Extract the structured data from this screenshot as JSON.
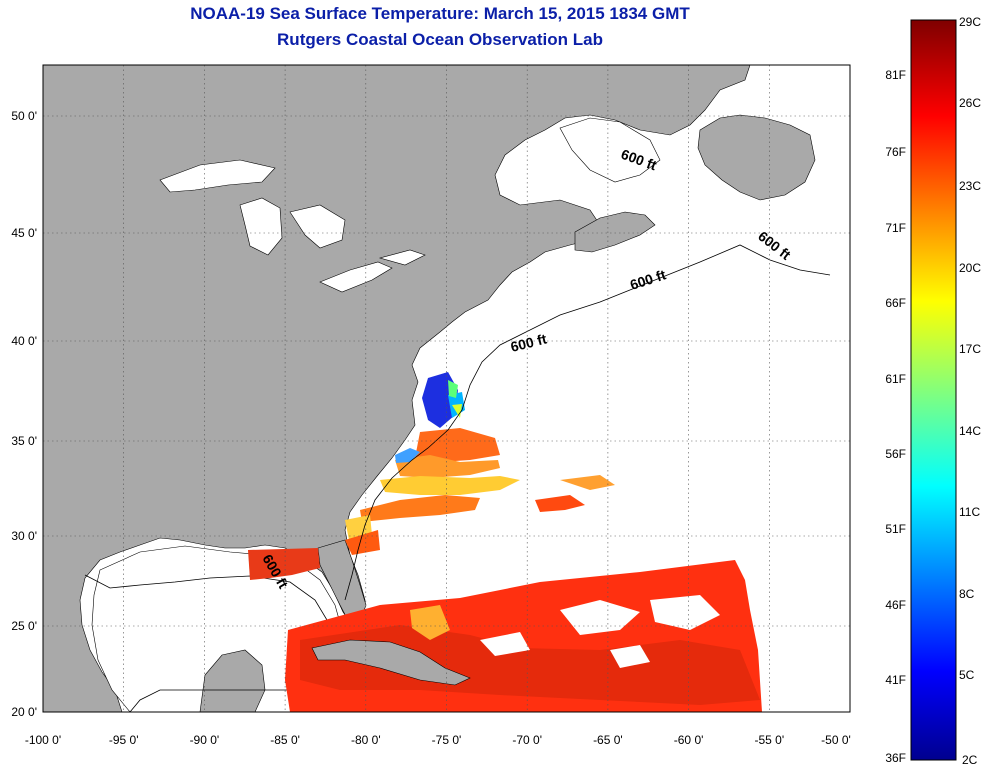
{
  "title": "NOAA-19 Sea Surface Temperature:  March 15, 2015 1834 GMT",
  "subtitle": "Rutgers Coastal Ocean Observation Lab",
  "map": {
    "lon_ticks": [
      "-100 0'",
      "-95 0'",
      "-90 0'",
      "-85 0'",
      "-80 0'",
      "-75 0'",
      "-70 0'",
      "-65 0'",
      "-60 0'",
      "-55 0'",
      "-50 0'"
    ],
    "lat_ticks": [
      "50 0'",
      "45 0'",
      "40 0'",
      "35 0'",
      "30 0'",
      "25 0'",
      "20 0'"
    ],
    "lon_range": [
      -100,
      -50
    ],
    "lat_range": [
      20,
      52
    ],
    "contour_label": "600 ft",
    "land_color": "#a9a9a9",
    "ocean_color": "#ffffff"
  },
  "colorbar": {
    "celsius": [
      "29C",
      "26C",
      "23C",
      "20C",
      "17C",
      "14C",
      "11C",
      "8C",
      "5C",
      "2C"
    ],
    "fahrenheit": [
      "81F",
      "76F",
      "71F",
      "66F",
      "61F",
      "56F",
      "51F",
      "46F",
      "41F",
      "36F"
    ],
    "colors": [
      "#7f0000",
      "#ff0000",
      "#ff7f00",
      "#ffff00",
      "#7fff7f",
      "#00ffff",
      "#007fff",
      "#0000ff",
      "#00008f"
    ]
  }
}
